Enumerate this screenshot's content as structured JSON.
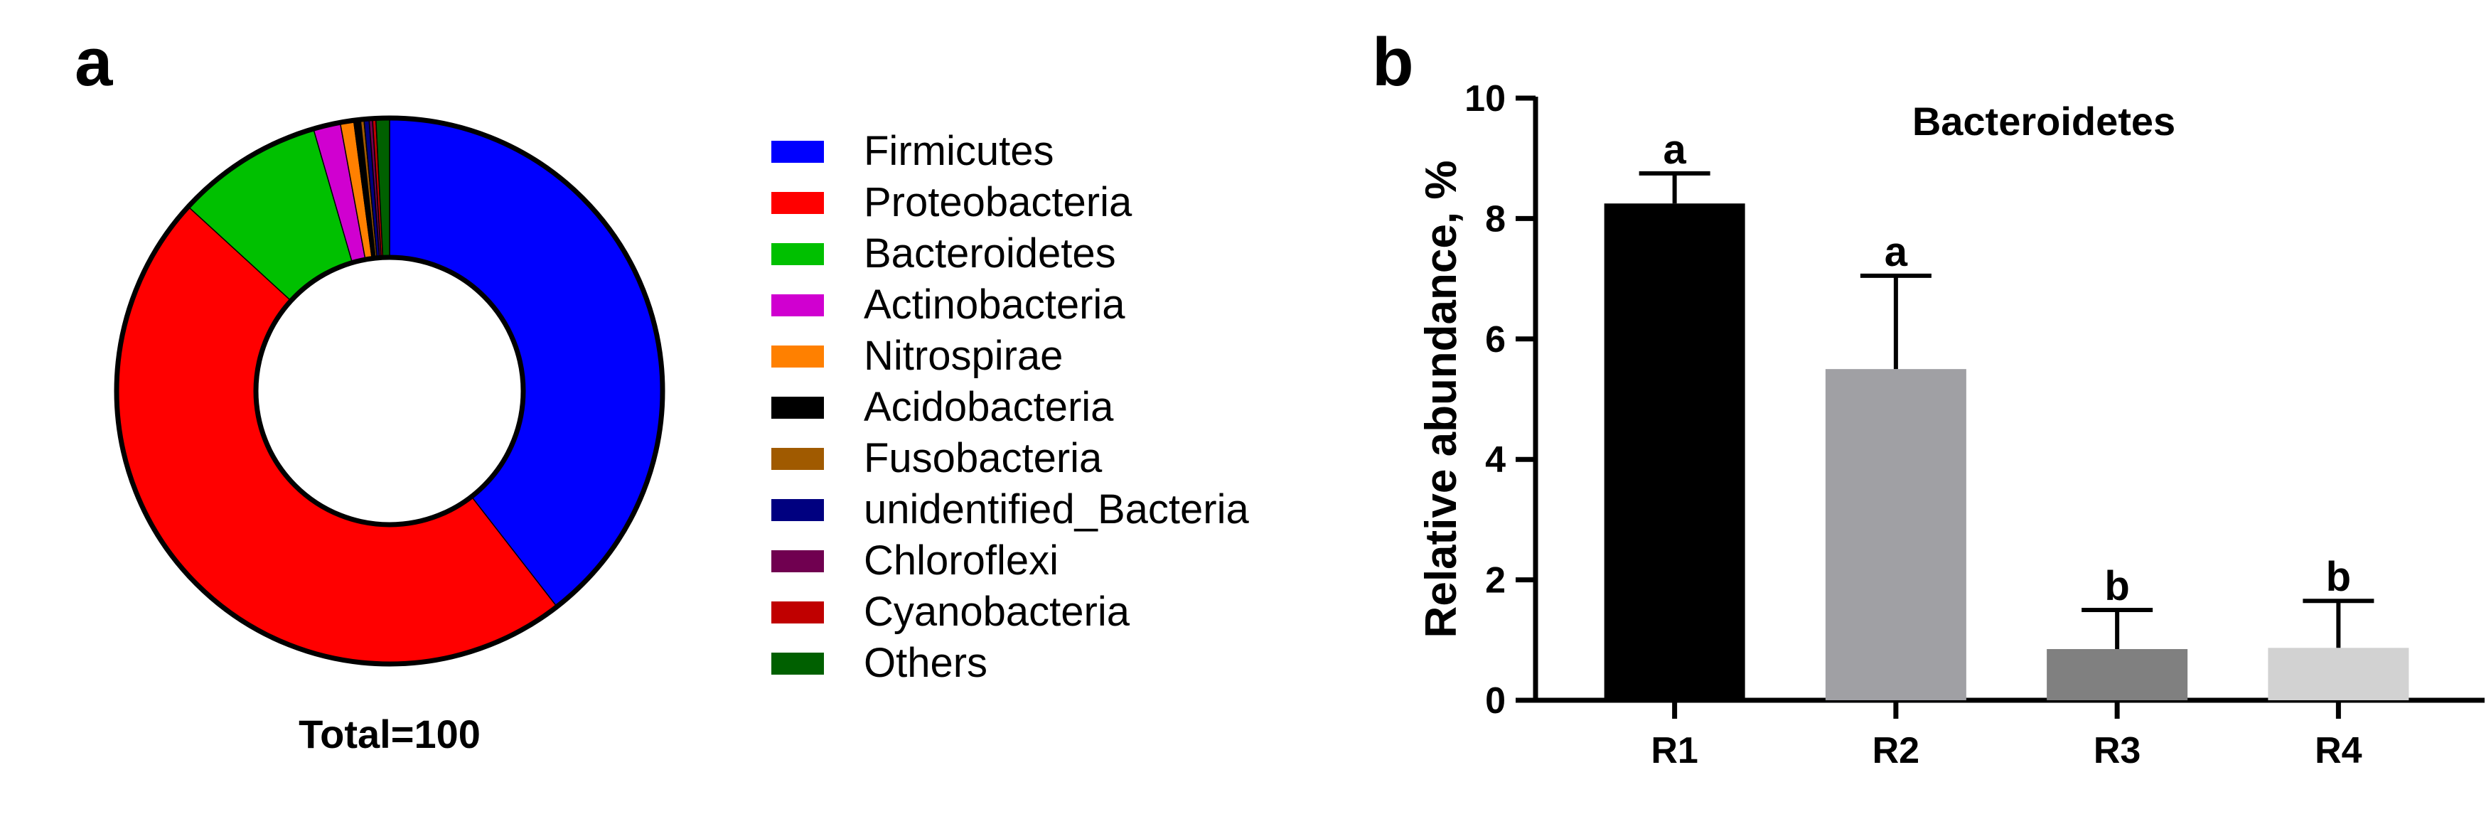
{
  "chart_data": [
    {
      "panel": "a",
      "type": "pie",
      "caption": "Total=100",
      "categories": [
        "Firmicutes",
        "Proteobacteria",
        "Bacteroidetes",
        "Actinobacteria",
        "Nitrospirae",
        "Acidobacteria",
        "Fusobacteria",
        "unidentified_Bacteria",
        "Chloroflexi",
        "Cyanobacteria",
        "Others"
      ],
      "values": [
        39.5,
        47.3,
        8.7,
        1.6,
        0.8,
        0.4,
        0.2,
        0.3,
        0.2,
        0.2,
        0.8
      ],
      "colors": [
        "#0000ff",
        "#ff0000",
        "#00c000",
        "#d000d0",
        "#ff8000",
        "#000000",
        "#a05a00",
        "#000080",
        "#700050",
        "#c00000",
        "#006000"
      ],
      "legend_position": "right"
    },
    {
      "panel": "b",
      "type": "bar",
      "title": "Bacteroidetes",
      "ylabel": "Relative abundance, %",
      "ylim": [
        0,
        10
      ],
      "yticks": [
        0,
        2,
        4,
        6,
        8,
        10
      ],
      "categories": [
        "R1",
        "R2",
        "R3",
        "R4"
      ],
      "values": [
        8.25,
        5.5,
        0.85,
        0.87
      ],
      "error_bars": [
        0.5,
        1.55,
        0.65,
        0.78
      ],
      "significance": [
        "a",
        "a",
        "b",
        "b"
      ],
      "colors": [
        "#000000",
        "#a0a0a4",
        "#808080",
        "#d2d2d2"
      ]
    }
  ]
}
